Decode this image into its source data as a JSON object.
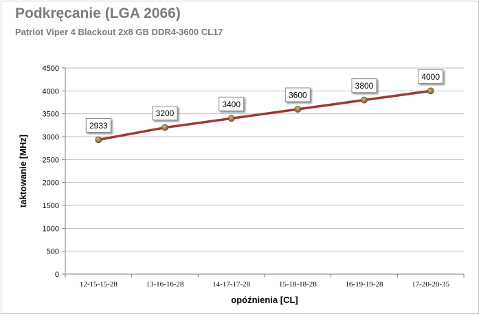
{
  "chart_data": {
    "type": "line",
    "title": "Podkręcanie (LGA 2066)",
    "subtitle": "Patriot Viper 4 Blackout 2x8 GB DDR4-3600 CL17",
    "xlabel": "opóźnienia [CL]",
    "ylabel": "taktowanie [MHz]",
    "categories": [
      "12-15-15-28",
      "13-16-16-28",
      "14-17-17-28",
      "15-18-18-28",
      "16-19-19-28",
      "17-20-20-35"
    ],
    "series": [
      {
        "values": [
          2933,
          3200,
          3400,
          3600,
          3800,
          4000
        ]
      }
    ],
    "ylim": [
      0,
      4500
    ],
    "yticks": [
      0,
      500,
      1000,
      1500,
      2000,
      2500,
      3000,
      3500,
      4000,
      4500
    ],
    "grid": true,
    "legend": "none",
    "colors": {
      "line": "#9b3a33",
      "marker": "#8a6a3a",
      "grid": "#bfbfbf"
    }
  }
}
